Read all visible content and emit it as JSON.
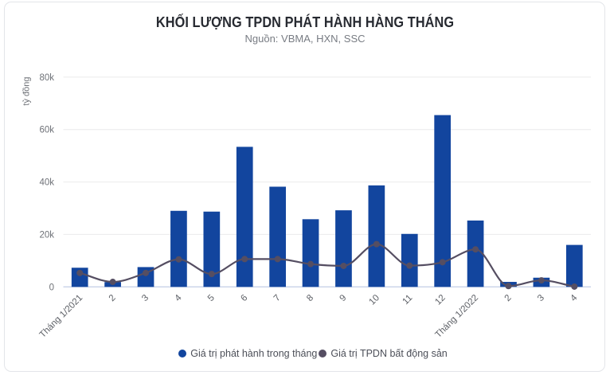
{
  "title": "KHỐI LƯỢNG TPDN PHÁT HÀNH HÀNG THÁNG",
  "subtitle": "Nguồn: VBMA, HXN, SSC",
  "chart_data": {
    "type": "bar",
    "title": "KHỐI LƯỢNG TPDN PHÁT HÀNH HÀNG THÁNG",
    "subtitle": "Nguồn: VBMA, HXN, SSC",
    "xlabel": "",
    "ylabel": "tỷ đồng",
    "ylim": [
      0,
      80000
    ],
    "grid": true,
    "legend_position": "bottom",
    "categories": [
      "Tháng 1/2021",
      "2",
      "3",
      "4",
      "5",
      "6",
      "7",
      "8",
      "9",
      "10",
      "11",
      "12",
      "Tháng 1/2022",
      "2",
      "3",
      "4"
    ],
    "yticks": [
      {
        "value": 0,
        "label": "0"
      },
      {
        "value": 20000,
        "label": "20k"
      },
      {
        "value": 40000,
        "label": "40k"
      },
      {
        "value": 60000,
        "label": "60k"
      },
      {
        "value": 80000,
        "label": "80k"
      }
    ],
    "series": [
      {
        "name": "Giá trị phát hành trong tháng",
        "type": "bar",
        "color": "#12459e",
        "values": [
          7300,
          1850,
          7550,
          29000,
          28700,
          53400,
          38200,
          25800,
          29200,
          38700,
          20200,
          65500,
          25300,
          1900,
          3500,
          16000
        ]
      },
      {
        "name": "Giá trị TPDN bất động sản",
        "type": "line",
        "color": "#554e62",
        "values": [
          5300,
          1900,
          5300,
          10500,
          4900,
          10600,
          10600,
          8700,
          8000,
          16300,
          8100,
          9400,
          14300,
          300,
          2500,
          100
        ]
      }
    ]
  },
  "colors": {
    "bar": "#12459e",
    "line": "#554e62",
    "gridline": "#ededee",
    "zero_line": "#c8d2e8",
    "card_border": "#e3e5e9",
    "title_text": "#272a31",
    "subtitle_text": "#787c83",
    "ytick_text": "#6e7177",
    "xtick_text": "#5d6066",
    "legend_text": "#4c4f58",
    "background": "#ffffff"
  }
}
